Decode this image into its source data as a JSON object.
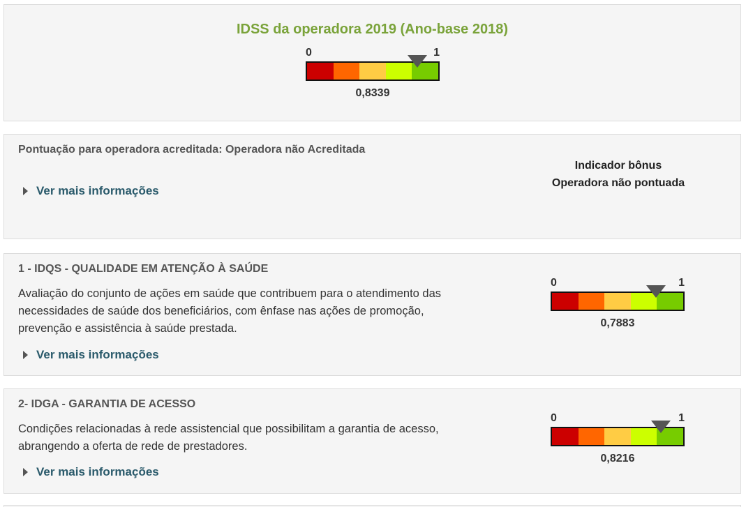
{
  "header": {
    "title": "IDSS da operadora 2019 (Ano-base 2018)",
    "gauge": {
      "min_label": "0",
      "max_label": "1",
      "value": 0.8339,
      "value_label": "0,8339"
    }
  },
  "gauge_colors": [
    "#cc0000",
    "#ff6600",
    "#ffcc44",
    "#ccff00",
    "#77cc00"
  ],
  "accreditation": {
    "text": "Pontuação para operadora acreditada: Operadora não Acreditada",
    "more_label": "Ver mais informações",
    "bonus_title": "Indicador bônus",
    "bonus_status": "Operadora não pontuada"
  },
  "indicators": [
    {
      "title": "1 - IDQS - QUALIDADE EM ATENÇÃO À SAÚDE",
      "desc_lines": [
        "Avaliação do conjunto de ações em saúde que contribuem para o atendimento das",
        "necessidades de saúde dos beneficiários, com ênfase nas ações de promoção,",
        "prevenção e assistência à saúde prestada."
      ],
      "more_label": "Ver mais informações",
      "gauge": {
        "min_label": "0",
        "max_label": "1",
        "value": 0.7883,
        "value_label": "0,7883"
      }
    },
    {
      "title": "2- IDGA - GARANTIA DE ACESSO",
      "desc_lines": [
        "Condições relacionadas à rede assistencial que possibilitam a garantia de acesso,",
        "abrangendo a oferta de rede de prestadores."
      ],
      "more_label": "Ver mais informações",
      "gauge": {
        "min_label": "0",
        "max_label": "1",
        "value": 0.8216,
        "value_label": "0,8216"
      }
    }
  ]
}
